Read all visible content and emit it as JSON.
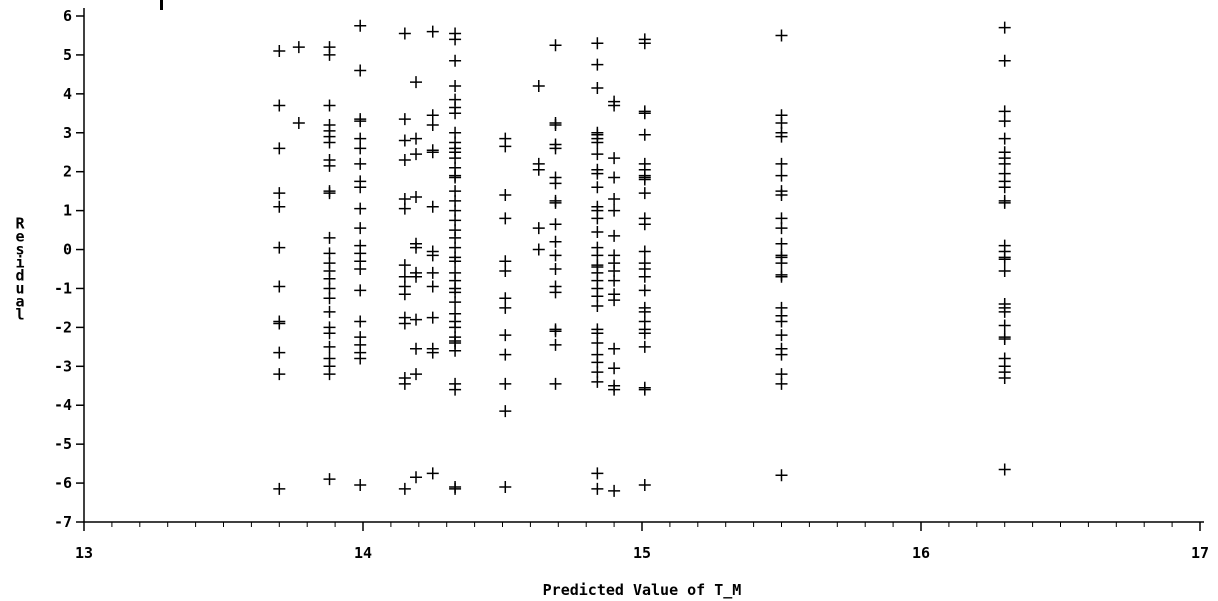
{
  "chart_data": {
    "type": "scatter",
    "marker": "plus",
    "color": "#000000",
    "xlabel": "Predicted Value of T_M",
    "ylabel": "Residual",
    "xlim": [
      13,
      17
    ],
    "ylim": [
      -7,
      6
    ],
    "xticks": [
      13,
      14,
      15,
      16,
      17
    ],
    "yticks": [
      6,
      5,
      4,
      3,
      2,
      1,
      0,
      -1,
      -2,
      -3,
      -4,
      -5,
      -6,
      -7
    ],
    "grid": false,
    "points": [
      [
        13.7,
        5.1
      ],
      [
        13.7,
        3.7
      ],
      [
        13.7,
        2.6
      ],
      [
        13.7,
        1.45
      ],
      [
        13.7,
        1.1
      ],
      [
        13.7,
        0.05
      ],
      [
        13.7,
        -0.95
      ],
      [
        13.7,
        -1.85
      ],
      [
        13.7,
        -1.9
      ],
      [
        13.7,
        -2.65
      ],
      [
        13.7,
        -3.2
      ],
      [
        13.7,
        -6.15
      ],
      [
        13.77,
        5.2
      ],
      [
        13.77,
        3.25
      ],
      [
        13.88,
        5.2
      ],
      [
        13.88,
        5.0
      ],
      [
        13.88,
        3.7
      ],
      [
        13.88,
        3.2
      ],
      [
        13.88,
        3.05
      ],
      [
        13.88,
        2.9
      ],
      [
        13.88,
        2.75
      ],
      [
        13.88,
        2.3
      ],
      [
        13.88,
        2.15
      ],
      [
        13.88,
        1.5
      ],
      [
        13.88,
        1.45
      ],
      [
        13.88,
        0.3
      ],
      [
        13.88,
        -0.1
      ],
      [
        13.88,
        -0.35
      ],
      [
        13.88,
        -0.55
      ],
      [
        13.88,
        -0.75
      ],
      [
        13.88,
        -1.0
      ],
      [
        13.88,
        -1.25
      ],
      [
        13.88,
        -1.6
      ],
      [
        13.88,
        -2.0
      ],
      [
        13.88,
        -2.15
      ],
      [
        13.88,
        -2.5
      ],
      [
        13.88,
        -2.8
      ],
      [
        13.88,
        -3.0
      ],
      [
        13.88,
        -3.2
      ],
      [
        13.88,
        -5.9
      ],
      [
        13.99,
        5.75
      ],
      [
        13.99,
        4.6
      ],
      [
        13.99,
        3.35
      ],
      [
        13.99,
        3.3
      ],
      [
        13.99,
        2.85
      ],
      [
        13.99,
        2.6
      ],
      [
        13.99,
        2.2
      ],
      [
        13.99,
        1.75
      ],
      [
        13.99,
        1.6
      ],
      [
        13.99,
        1.05
      ],
      [
        13.99,
        0.55
      ],
      [
        13.99,
        0.1
      ],
      [
        13.99,
        -0.1
      ],
      [
        13.99,
        -0.3
      ],
      [
        13.99,
        -0.5
      ],
      [
        13.99,
        -1.05
      ],
      [
        13.99,
        -1.85
      ],
      [
        13.99,
        -2.25
      ],
      [
        13.99,
        -2.45
      ],
      [
        13.99,
        -2.65
      ],
      [
        13.99,
        -2.8
      ],
      [
        13.99,
        -6.05
      ],
      [
        14.15,
        5.55
      ],
      [
        14.15,
        3.35
      ],
      [
        14.15,
        2.8
      ],
      [
        14.15,
        2.3
      ],
      [
        14.15,
        1.3
      ],
      [
        14.15,
        1.05
      ],
      [
        14.15,
        -0.4
      ],
      [
        14.15,
        -0.7
      ],
      [
        14.15,
        -0.95
      ],
      [
        14.15,
        -1.15
      ],
      [
        14.15,
        -1.75
      ],
      [
        14.15,
        -1.9
      ],
      [
        14.15,
        -3.3
      ],
      [
        14.15,
        -3.45
      ],
      [
        14.15,
        -6.15
      ],
      [
        14.19,
        4.3
      ],
      [
        14.19,
        2.85
      ],
      [
        14.19,
        2.45
      ],
      [
        14.19,
        1.35
      ],
      [
        14.19,
        0.15
      ],
      [
        14.19,
        0.05
      ],
      [
        14.19,
        -0.6
      ],
      [
        14.19,
        -0.7
      ],
      [
        14.19,
        -1.8
      ],
      [
        14.19,
        -2.55
      ],
      [
        14.19,
        -3.2
      ],
      [
        14.19,
        -5.85
      ],
      [
        14.25,
        5.6
      ],
      [
        14.25,
        3.45
      ],
      [
        14.25,
        3.2
      ],
      [
        14.25,
        2.55
      ],
      [
        14.25,
        2.5
      ],
      [
        14.25,
        1.1
      ],
      [
        14.25,
        -0.05
      ],
      [
        14.25,
        -0.15
      ],
      [
        14.25,
        -0.6
      ],
      [
        14.25,
        -0.95
      ],
      [
        14.25,
        -1.75
      ],
      [
        14.25,
        -2.55
      ],
      [
        14.25,
        -2.65
      ],
      [
        14.25,
        -5.75
      ],
      [
        14.33,
        5.55
      ],
      [
        14.33,
        5.4
      ],
      [
        14.33,
        4.85
      ],
      [
        14.33,
        4.2
      ],
      [
        14.33,
        3.85
      ],
      [
        14.33,
        3.65
      ],
      [
        14.33,
        3.5
      ],
      [
        14.33,
        3.0
      ],
      [
        14.33,
        2.75
      ],
      [
        14.33,
        2.6
      ],
      [
        14.33,
        2.5
      ],
      [
        14.33,
        2.35
      ],
      [
        14.33,
        2.1
      ],
      [
        14.33,
        1.9
      ],
      [
        14.33,
        1.85
      ],
      [
        14.33,
        1.5
      ],
      [
        14.33,
        1.25
      ],
      [
        14.33,
        1.0
      ],
      [
        14.33,
        0.75
      ],
      [
        14.33,
        0.5
      ],
      [
        14.33,
        0.3
      ],
      [
        14.33,
        0.05
      ],
      [
        14.33,
        -0.2
      ],
      [
        14.33,
        -0.3
      ],
      [
        14.33,
        -0.6
      ],
      [
        14.33,
        -0.8
      ],
      [
        14.33,
        -1.0
      ],
      [
        14.33,
        -1.1
      ],
      [
        14.33,
        -1.35
      ],
      [
        14.33,
        -1.65
      ],
      [
        14.33,
        -1.85
      ],
      [
        14.33,
        -2.0
      ],
      [
        14.33,
        -2.25
      ],
      [
        14.33,
        -2.35
      ],
      [
        14.33,
        -2.4
      ],
      [
        14.33,
        -2.6
      ],
      [
        14.33,
        -3.45
      ],
      [
        14.33,
        -3.6
      ],
      [
        14.33,
        -6.1
      ],
      [
        14.33,
        -6.15
      ],
      [
        14.51,
        2.85
      ],
      [
        14.51,
        2.65
      ],
      [
        14.51,
        1.4
      ],
      [
        14.51,
        0.8
      ],
      [
        14.51,
        -0.3
      ],
      [
        14.51,
        -0.55
      ],
      [
        14.51,
        -1.25
      ],
      [
        14.51,
        -1.5
      ],
      [
        14.51,
        -2.2
      ],
      [
        14.51,
        -2.7
      ],
      [
        14.51,
        -3.45
      ],
      [
        14.51,
        -4.15
      ],
      [
        14.51,
        -6.1
      ],
      [
        14.63,
        4.2
      ],
      [
        14.63,
        2.2
      ],
      [
        14.63,
        2.05
      ],
      [
        14.63,
        0.55
      ],
      [
        14.63,
        0.0
      ],
      [
        14.69,
        5.25
      ],
      [
        14.69,
        3.25
      ],
      [
        14.69,
        3.2
      ],
      [
        14.69,
        2.7
      ],
      [
        14.69,
        2.6
      ],
      [
        14.69,
        1.85
      ],
      [
        14.69,
        1.7
      ],
      [
        14.69,
        1.25
      ],
      [
        14.69,
        1.2
      ],
      [
        14.69,
        0.65
      ],
      [
        14.69,
        0.2
      ],
      [
        14.69,
        -0.15
      ],
      [
        14.69,
        -0.5
      ],
      [
        14.69,
        -0.95
      ],
      [
        14.69,
        -1.1
      ],
      [
        14.69,
        -2.05
      ],
      [
        14.69,
        -2.1
      ],
      [
        14.69,
        -2.45
      ],
      [
        14.69,
        -3.45
      ],
      [
        14.84,
        5.3
      ],
      [
        14.84,
        4.75
      ],
      [
        14.84,
        4.15
      ],
      [
        14.84,
        3.0
      ],
      [
        14.84,
        2.95
      ],
      [
        14.84,
        2.85
      ],
      [
        14.84,
        2.75
      ],
      [
        14.84,
        2.45
      ],
      [
        14.84,
        2.05
      ],
      [
        14.84,
        1.95
      ],
      [
        14.84,
        1.6
      ],
      [
        14.84,
        1.1
      ],
      [
        14.84,
        1.0
      ],
      [
        14.84,
        0.8
      ],
      [
        14.84,
        0.45
      ],
      [
        14.84,
        0.05
      ],
      [
        14.84,
        -0.15
      ],
      [
        14.84,
        -0.4
      ],
      [
        14.84,
        -0.45
      ],
      [
        14.84,
        -0.6
      ],
      [
        14.84,
        -0.8
      ],
      [
        14.84,
        -1.0
      ],
      [
        14.84,
        -1.2
      ],
      [
        14.84,
        -1.45
      ],
      [
        14.84,
        -2.05
      ],
      [
        14.84,
        -2.15
      ],
      [
        14.84,
        -2.4
      ],
      [
        14.84,
        -2.7
      ],
      [
        14.84,
        -2.9
      ],
      [
        14.84,
        -3.15
      ],
      [
        14.84,
        -3.4
      ],
      [
        14.84,
        -5.75
      ],
      [
        14.84,
        -6.15
      ],
      [
        14.9,
        3.8
      ],
      [
        14.9,
        3.7
      ],
      [
        14.9,
        2.35
      ],
      [
        14.9,
        1.85
      ],
      [
        14.9,
        1.3
      ],
      [
        14.9,
        1.0
      ],
      [
        14.9,
        0.35
      ],
      [
        14.9,
        -0.15
      ],
      [
        14.9,
        -0.35
      ],
      [
        14.9,
        -0.55
      ],
      [
        14.9,
        -0.8
      ],
      [
        14.9,
        -1.15
      ],
      [
        14.9,
        -1.3
      ],
      [
        14.9,
        -2.55
      ],
      [
        14.9,
        -3.05
      ],
      [
        14.9,
        -3.5
      ],
      [
        14.9,
        -3.6
      ],
      [
        14.9,
        -6.2
      ],
      [
        15.01,
        5.4
      ],
      [
        15.01,
        5.3
      ],
      [
        15.01,
        3.55
      ],
      [
        15.01,
        3.5
      ],
      [
        15.01,
        2.95
      ],
      [
        15.01,
        2.2
      ],
      [
        15.01,
        2.05
      ],
      [
        15.01,
        1.9
      ],
      [
        15.01,
        1.85
      ],
      [
        15.01,
        1.8
      ],
      [
        15.01,
        1.45
      ],
      [
        15.01,
        0.8
      ],
      [
        15.01,
        0.65
      ],
      [
        15.01,
        -0.05
      ],
      [
        15.01,
        -0.35
      ],
      [
        15.01,
        -0.5
      ],
      [
        15.01,
        -0.7
      ],
      [
        15.01,
        -1.05
      ],
      [
        15.01,
        -1.5
      ],
      [
        15.01,
        -1.6
      ],
      [
        15.01,
        -1.85
      ],
      [
        15.01,
        -2.05
      ],
      [
        15.01,
        -2.15
      ],
      [
        15.01,
        -2.5
      ],
      [
        15.01,
        -3.55
      ],
      [
        15.01,
        -3.6
      ],
      [
        15.01,
        -6.05
      ],
      [
        15.5,
        5.5
      ],
      [
        15.5,
        3.45
      ],
      [
        15.5,
        3.25
      ],
      [
        15.5,
        3.0
      ],
      [
        15.5,
        2.9
      ],
      [
        15.5,
        2.2
      ],
      [
        15.5,
        1.9
      ],
      [
        15.5,
        1.5
      ],
      [
        15.5,
        1.4
      ],
      [
        15.5,
        0.8
      ],
      [
        15.5,
        0.55
      ],
      [
        15.5,
        0.15
      ],
      [
        15.5,
        -0.15
      ],
      [
        15.5,
        -0.2
      ],
      [
        15.5,
        -0.35
      ],
      [
        15.5,
        -0.65
      ],
      [
        15.5,
        -0.7
      ],
      [
        15.5,
        -1.5
      ],
      [
        15.5,
        -1.7
      ],
      [
        15.5,
        -1.85
      ],
      [
        15.5,
        -2.2
      ],
      [
        15.5,
        -2.55
      ],
      [
        15.5,
        -2.7
      ],
      [
        15.5,
        -3.2
      ],
      [
        15.5,
        -3.45
      ],
      [
        15.5,
        -5.8
      ],
      [
        16.3,
        5.7
      ],
      [
        16.3,
        4.85
      ],
      [
        16.3,
        3.55
      ],
      [
        16.3,
        3.3
      ],
      [
        16.3,
        2.85
      ],
      [
        16.3,
        2.5
      ],
      [
        16.3,
        2.35
      ],
      [
        16.3,
        2.2
      ],
      [
        16.3,
        1.95
      ],
      [
        16.3,
        1.75
      ],
      [
        16.3,
        1.6
      ],
      [
        16.3,
        1.25
      ],
      [
        16.3,
        1.2
      ],
      [
        16.3,
        0.1
      ],
      [
        16.3,
        -0.05
      ],
      [
        16.3,
        -0.2
      ],
      [
        16.3,
        -0.25
      ],
      [
        16.3,
        -0.55
      ],
      [
        16.3,
        -1.4
      ],
      [
        16.3,
        -1.5
      ],
      [
        16.3,
        -1.6
      ],
      [
        16.3,
        -1.95
      ],
      [
        16.3,
        -2.25
      ],
      [
        16.3,
        -2.3
      ],
      [
        16.3,
        -2.8
      ],
      [
        16.3,
        -3.0
      ],
      [
        16.3,
        -3.15
      ],
      [
        16.3,
        -3.3
      ],
      [
        16.3,
        -5.65
      ]
    ]
  }
}
